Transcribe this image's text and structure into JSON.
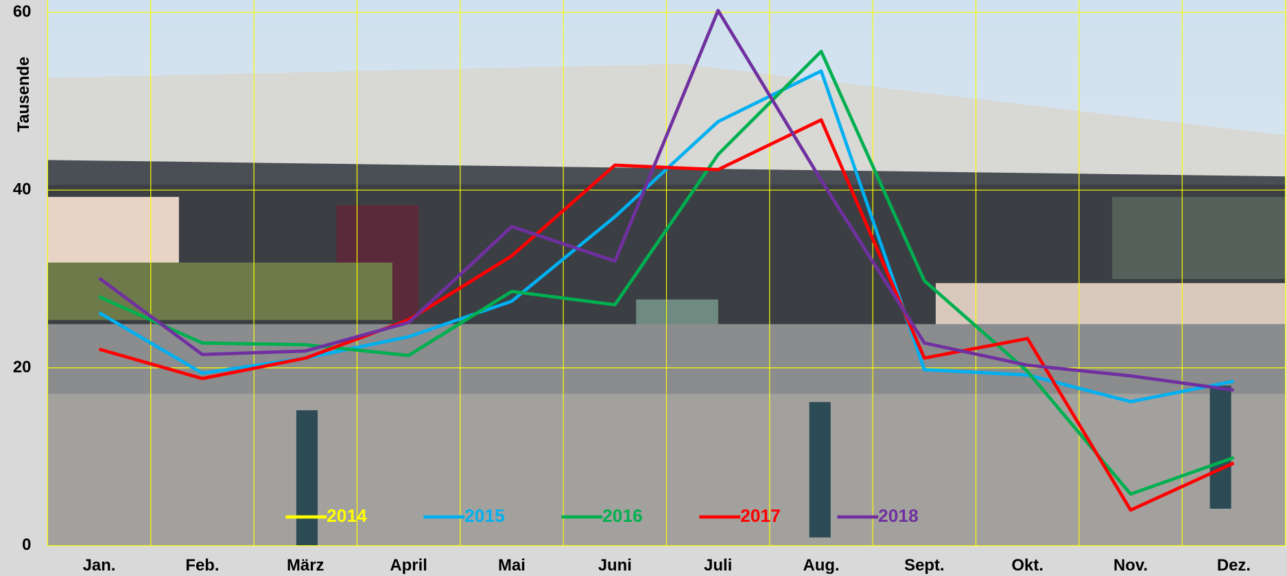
{
  "chart_data": {
    "type": "line",
    "y_label": "Tausende",
    "categories": [
      "Jan.",
      "Feb.",
      "März",
      "April",
      "Mai",
      "Juni",
      "Juli",
      "Aug.",
      "Sept.",
      "Okt.",
      "Nov.",
      "Dez."
    ],
    "series": [
      {
        "name": "2014",
        "color": "#ffff00",
        "values": [
          null,
          null,
          null,
          null,
          null,
          null,
          null,
          null,
          null,
          null,
          null,
          null
        ]
      },
      {
        "name": "2015",
        "color": "#00b0f0",
        "values": [
          26.2,
          19.4,
          21.1,
          23.5,
          27.5,
          37.0,
          47.7,
          53.4,
          19.8,
          19.2,
          16.2,
          18.5
        ]
      },
      {
        "name": "2016",
        "color": "#00b050",
        "values": [
          28.0,
          22.8,
          22.6,
          21.4,
          28.6,
          27.1,
          44.0,
          55.6,
          29.8,
          19.6,
          5.8,
          9.9
        ]
      },
      {
        "name": "2017",
        "color": "#ff0000",
        "values": [
          22.1,
          18.8,
          21.1,
          25.4,
          32.6,
          42.8,
          42.3,
          47.9,
          21.1,
          23.3,
          4.0,
          9.3
        ]
      },
      {
        "name": "2018",
        "color": "#7030a0",
        "values": [
          30.1,
          21.5,
          21.9,
          25.1,
          35.9,
          32.0,
          60.2,
          41.1,
          22.8,
          20.3,
          19.1,
          17.5
        ]
      }
    ],
    "ylim": [
      0,
      60
    ],
    "yticks": [
      0,
      20,
      40,
      60
    ],
    "grid": true,
    "grid_color": "#ffff00",
    "legend": "bottom"
  }
}
